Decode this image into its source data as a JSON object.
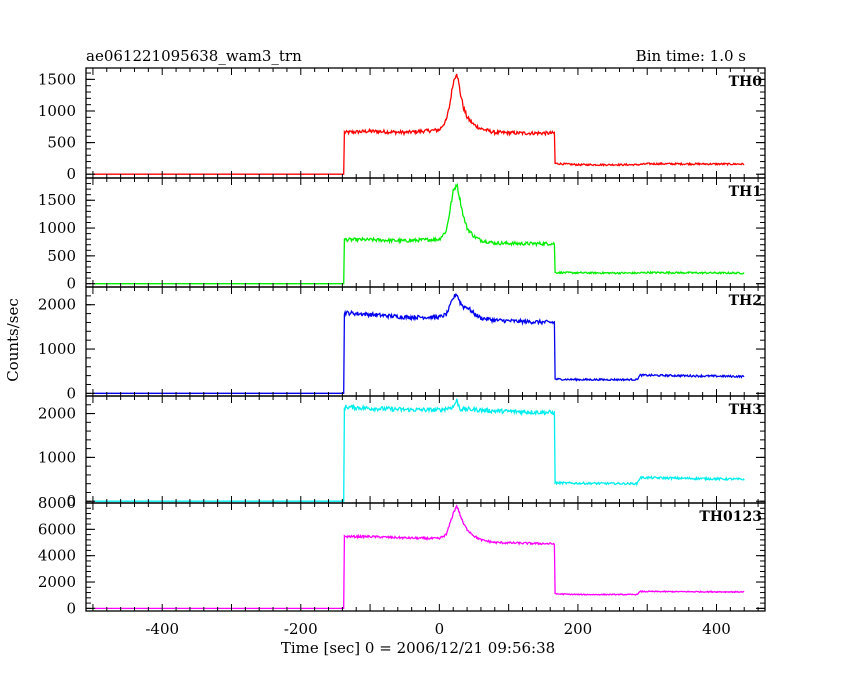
{
  "header": {
    "title": "ae061221095638_wam3_trn",
    "bin_time": "Bin time: 1.0 s"
  },
  "axes": {
    "xlabel": "Time [sec] 0 = 2006/12/21 09:56:38",
    "ylabel": "Counts/sec",
    "xlim": [
      -510,
      470
    ],
    "xticks": [
      -400,
      -200,
      0,
      200,
      400
    ]
  },
  "chart_data": {
    "type": "line",
    "title": "ae061221095638_wam3_trn",
    "xlabel": "Time [sec] 0 = 2006/12/21 09:56:38",
    "ylabel": "Counts/sec",
    "x_range": [
      -510,
      470
    ],
    "grid": false,
    "legend": "none",
    "series": [
      {
        "name": "TH0",
        "color": "#ff0000",
        "ylim": [
          -60,
          1680
        ],
        "yticks": [
          0,
          500,
          1000,
          1500
        ],
        "x": [
          -500,
          -138,
          -137,
          -100,
          -50,
          0,
          10,
          15,
          20,
          25,
          30,
          35,
          40,
          50,
          60,
          80,
          120,
          166,
          167,
          200,
          285,
          300,
          440
        ],
        "y": [
          0,
          0,
          660,
          680,
          660,
          700,
          850,
          1100,
          1450,
          1620,
          1300,
          1050,
          900,
          780,
          720,
          660,
          650,
          650,
          170,
          150,
          150,
          165,
          160
        ]
      },
      {
        "name": "TH1",
        "color": "#00ee00",
        "ylim": [
          -60,
          1900
        ],
        "yticks": [
          0,
          500,
          1000,
          1500
        ],
        "x": [
          -500,
          -138,
          -137,
          -100,
          -50,
          0,
          10,
          15,
          20,
          25,
          30,
          35,
          40,
          50,
          60,
          80,
          120,
          166,
          167,
          200,
          285,
          300,
          440
        ],
        "y": [
          0,
          0,
          790,
          790,
          770,
          800,
          950,
          1300,
          1650,
          1800,
          1500,
          1200,
          1000,
          850,
          780,
          730,
          720,
          720,
          200,
          195,
          190,
          200,
          190
        ]
      },
      {
        "name": "TH2",
        "color": "#0000ee",
        "ylim": [
          -60,
          2400
        ],
        "yticks": [
          0,
          1000,
          2000
        ],
        "x": [
          -500,
          -138,
          -137,
          -100,
          -50,
          0,
          10,
          15,
          20,
          25,
          30,
          35,
          40,
          50,
          60,
          80,
          120,
          166,
          167,
          200,
          285,
          290,
          440
        ],
        "y": [
          0,
          0,
          1820,
          1780,
          1720,
          1720,
          1780,
          1950,
          2150,
          2250,
          2050,
          1950,
          1950,
          1800,
          1700,
          1650,
          1620,
          1600,
          320,
          310,
          310,
          410,
          380
        ]
      },
      {
        "name": "TH3",
        "color": "#00eeee",
        "ylim": [
          -40,
          2400
        ],
        "yticks": [
          0,
          1000,
          2000
        ],
        "x": [
          -500,
          -138,
          -137,
          -100,
          -50,
          0,
          20,
          25,
          30,
          40,
          80,
          120,
          166,
          167,
          200,
          285,
          290,
          440
        ],
        "y": [
          0,
          0,
          2150,
          2120,
          2090,
          2080,
          2150,
          2300,
          2100,
          2100,
          2060,
          2040,
          2020,
          420,
          410,
          400,
          540,
          500
        ]
      },
      {
        "name": "TH0123",
        "color": "#ff00ff",
        "ylim": [
          -200,
          8000
        ],
        "yticks": [
          0,
          2000,
          4000,
          6000,
          8000
        ],
        "x": [
          -500,
          -138,
          -137,
          -100,
          -50,
          0,
          10,
          15,
          20,
          25,
          30,
          35,
          40,
          50,
          60,
          80,
          120,
          166,
          167,
          200,
          285,
          290,
          440
        ],
        "y": [
          0,
          0,
          5450,
          5450,
          5350,
          5300,
          5600,
          6400,
          7200,
          7800,
          7100,
          6400,
          6000,
          5500,
          5200,
          5000,
          4950,
          4900,
          1100,
          1050,
          1050,
          1280,
          1250
        ]
      }
    ]
  }
}
